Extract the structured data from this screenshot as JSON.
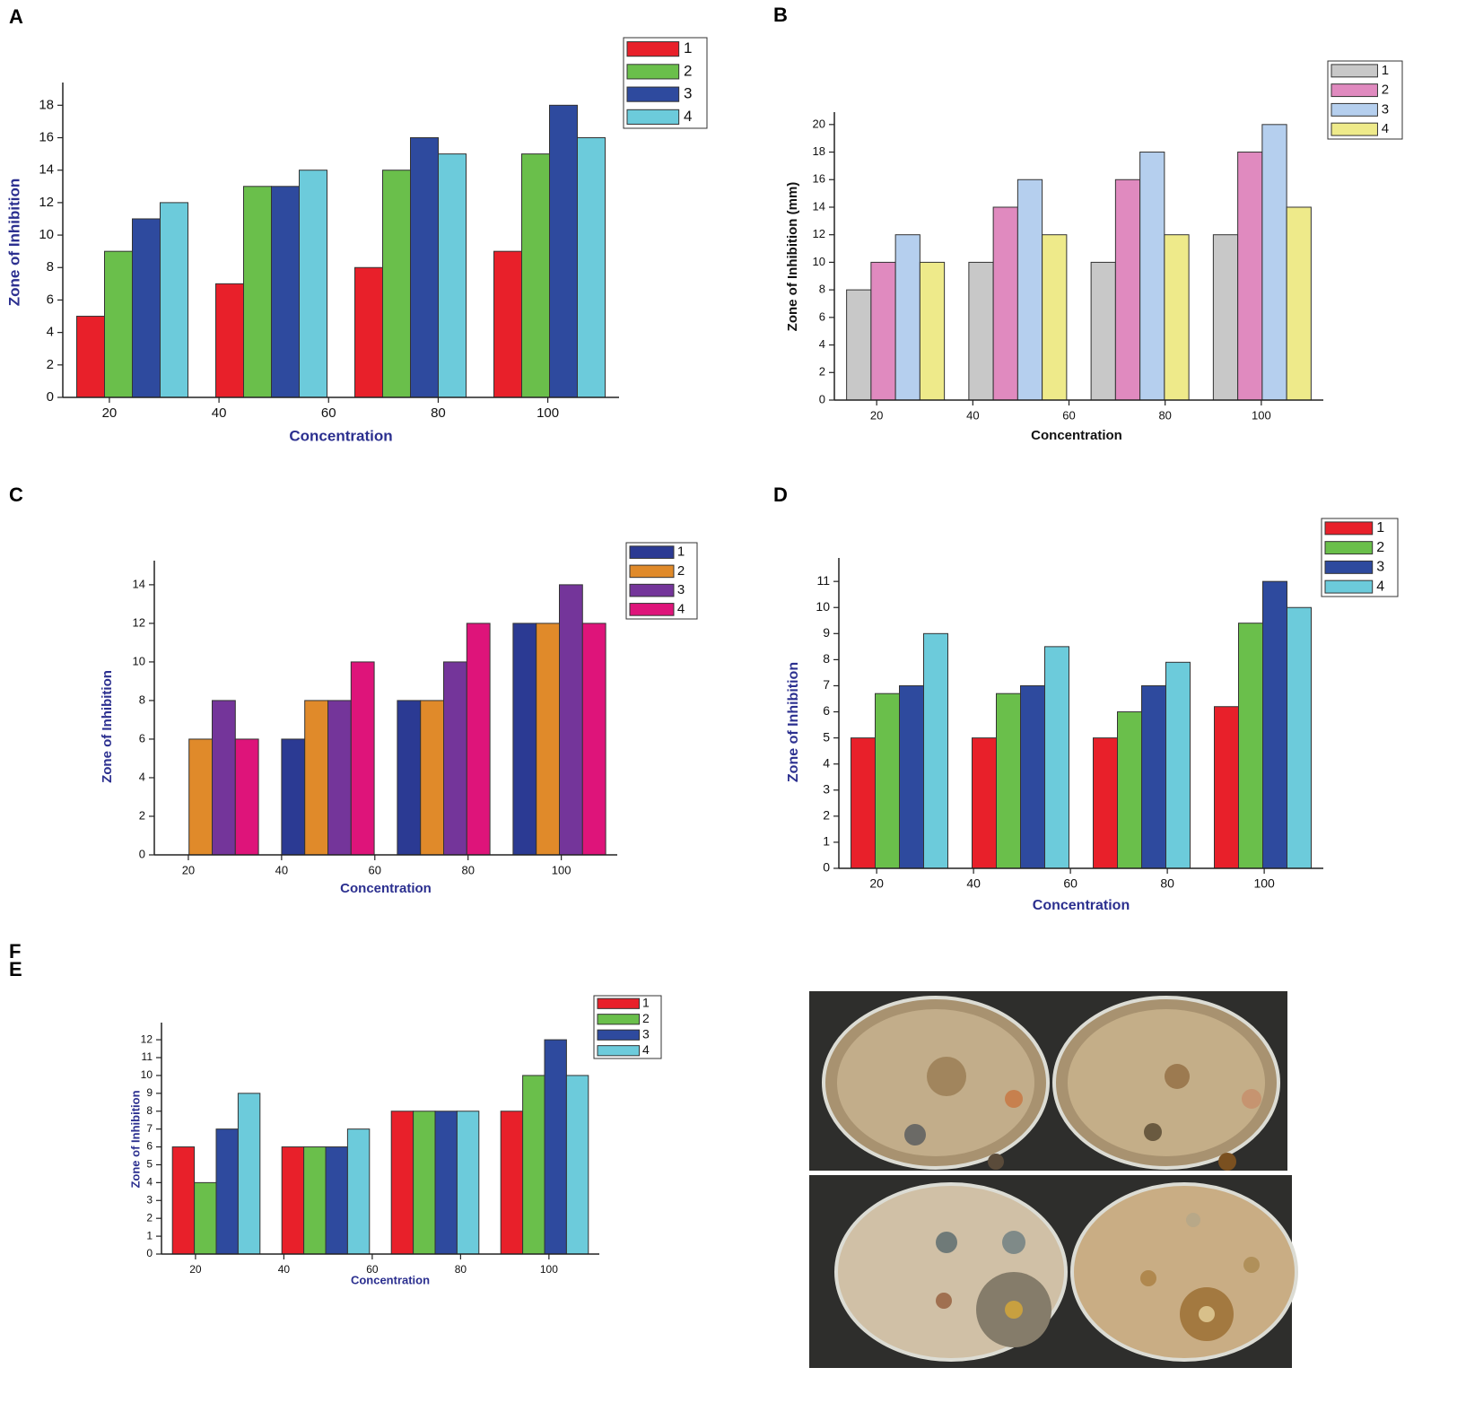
{
  "chart_data": [
    {
      "type": "bar",
      "panel_label": "A",
      "xlabel": "Concentration",
      "ylabel": "Zone of Inhibition",
      "categories": [
        null,
        null,
        null,
        null
      ],
      "xlim": [
        11.5,
        113
      ],
      "xticks": [
        20,
        40,
        60,
        80,
        100
      ],
      "ylim": [
        0,
        19.4
      ],
      "yticks": [
        0,
        2,
        4,
        6,
        8,
        10,
        12,
        14,
        16,
        18
      ],
      "series": [
        {
          "name": "1",
          "color": "#e8202a",
          "values": [
            5,
            7,
            8,
            9
          ]
        },
        {
          "name": "2",
          "color": "#6abf4b",
          "values": [
            9,
            13,
            14,
            15
          ]
        },
        {
          "name": "3",
          "color": "#2e4a9e",
          "values": [
            11,
            13,
            16,
            18
          ]
        },
        {
          "name": "4",
          "color": "#6ccbdb",
          "values": [
            12,
            14,
            15,
            16
          ]
        }
      ]
    },
    {
      "type": "bar",
      "panel_label": "B",
      "xlabel": "Concentration",
      "ylabel": "Zone of Inhibition (mm)",
      "categories": [
        null,
        null,
        null,
        null
      ],
      "xlim": [
        11.2,
        112.9
      ],
      "xticks": [
        20,
        40,
        60,
        80,
        100
      ],
      "ylim": [
        0,
        20.9
      ],
      "yticks": [
        0,
        2,
        4,
        6,
        8,
        10,
        12,
        14,
        16,
        18,
        20
      ],
      "series": [
        {
          "name": "1",
          "color": "#c8c8c8",
          "values": [
            8,
            10,
            10,
            12
          ]
        },
        {
          "name": "2",
          "color": "#e08abf",
          "values": [
            10,
            14,
            16,
            18
          ]
        },
        {
          "name": "3",
          "color": "#b5cfee",
          "values": [
            12,
            16,
            18,
            20
          ]
        },
        {
          "name": "4",
          "color": "#eeea8a",
          "values": [
            10,
            12,
            12,
            14
          ]
        }
      ]
    },
    {
      "type": "bar",
      "panel_label": "C",
      "xlabel": "Concentration",
      "ylabel": "Zone of Inhibition",
      "categories": [
        null,
        null,
        null,
        null
      ],
      "xlim": [
        12.7,
        112
      ],
      "xticks": [
        20,
        40,
        60,
        80,
        100
      ],
      "ylim": [
        0,
        15.25
      ],
      "yticks": [
        0,
        2,
        4,
        6,
        8,
        10,
        12,
        14
      ],
      "series": [
        {
          "name": "1",
          "color": "#2b3a93",
          "values": [
            0,
            6,
            8,
            12
          ]
        },
        {
          "name": "2",
          "color": "#e08a2a",
          "values": [
            6,
            8,
            8,
            12
          ]
        },
        {
          "name": "3",
          "color": "#74359a",
          "values": [
            8,
            8,
            10,
            14
          ]
        },
        {
          "name": "4",
          "color": "#de147a",
          "values": [
            6,
            10,
            12,
            12
          ]
        }
      ]
    },
    {
      "type": "bar",
      "panel_label": "D",
      "xlabel": "Concentration",
      "ylabel": "Zone of Inhibition",
      "categories": [
        null,
        null,
        null,
        null
      ],
      "xlim": [
        12.2,
        112.2
      ],
      "xticks": [
        20,
        40,
        60,
        80,
        100
      ],
      "ylim": [
        0,
        11.9
      ],
      "yticks": [
        0,
        1,
        2,
        3,
        4,
        5,
        6,
        7,
        8,
        9,
        10,
        11
      ],
      "series": [
        {
          "name": "1",
          "color": "#e8202a",
          "values": [
            5,
            5,
            5,
            6.2
          ]
        },
        {
          "name": "2",
          "color": "#6abf4b",
          "values": [
            6.7,
            6.7,
            6,
            9.4
          ]
        },
        {
          "name": "3",
          "color": "#2e4a9e",
          "values": [
            7,
            7,
            7,
            11
          ]
        },
        {
          "name": "4",
          "color": "#6ccbdb",
          "values": [
            9,
            8.5,
            7.9,
            10
          ]
        }
      ]
    },
    {
      "type": "bar",
      "panel_label": "E",
      "xlabel": "Concentration",
      "ylabel": "Zone of Inhibition",
      "categories": [
        null,
        null,
        null,
        null
      ],
      "xlim": [
        12.3,
        111.4
      ],
      "xticks": [
        20,
        40,
        60,
        80,
        100
      ],
      "ylim": [
        0,
        12.96
      ],
      "yticks": [
        0,
        1,
        2,
        3,
        4,
        5,
        6,
        7,
        8,
        9,
        10,
        11,
        12
      ],
      "series": [
        {
          "name": "1",
          "color": "#e8202a",
          "values": [
            6,
            6,
            8,
            8
          ]
        },
        {
          "name": "2",
          "color": "#6abf4b",
          "values": [
            4,
            6,
            8,
            10
          ]
        },
        {
          "name": "3",
          "color": "#2e4a9e",
          "values": [
            7,
            6,
            8,
            12
          ]
        },
        {
          "name": "4",
          "color": "#6ccbdb",
          "values": [
            9,
            7,
            8,
            10
          ]
        }
      ]
    }
  ],
  "image_panel": {
    "panel_label": "F"
  }
}
